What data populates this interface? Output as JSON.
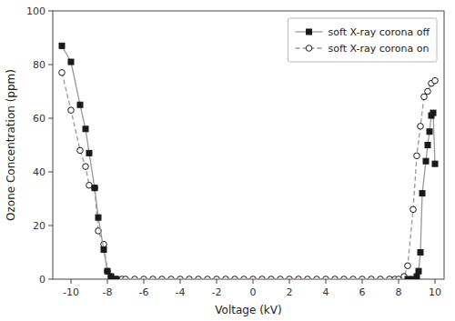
{
  "chart_data": {
    "type": "line",
    "xlabel": "Voltage (kV)",
    "ylabel": "Ozone Concentration (ppm)",
    "xlim": [
      -11,
      10.5
    ],
    "ylim": [
      0,
      100
    ],
    "xticks": [
      -10,
      -8,
      -6,
      -4,
      -2,
      0,
      2,
      4,
      6,
      8,
      10
    ],
    "yticks": [
      0,
      20,
      40,
      60,
      80,
      100
    ],
    "grid": false,
    "legend": "upper-right",
    "series": [
      {
        "name": "soft X-ray corona off",
        "color": "#999999",
        "marker": "square",
        "line_style": "solid",
        "x": [
          -10.5,
          -10.0,
          -9.5,
          -9.2,
          -9.0,
          -8.7,
          -8.5,
          -8.2,
          -8.0,
          -7.8,
          -7.5,
          8.5,
          8.8,
          9.0,
          9.1,
          9.2,
          9.3,
          9.5,
          9.6,
          9.7,
          9.8,
          9.9,
          10.0
        ],
        "values": [
          87,
          81,
          65,
          56,
          47,
          34,
          23,
          11,
          3,
          1,
          0,
          0,
          0,
          1,
          3,
          10,
          32,
          44,
          50,
          55,
          61,
          62,
          43
        ]
      },
      {
        "name": "soft X-ray corona on",
        "color": "#999999",
        "marker": "open-circle",
        "line_style": "dashed",
        "x": [
          -10.5,
          -10.0,
          -9.5,
          -9.2,
          -9.0,
          -8.7,
          -8.5,
          -8.2,
          -8.0,
          -7.8,
          -7.5,
          -7.2,
          -7.0,
          -6.5,
          -6.0,
          -5.5,
          -5.0,
          -4.5,
          -4.0,
          -3.5,
          -3.0,
          -2.5,
          -2.0,
          -1.5,
          -1.0,
          -0.5,
          0.0,
          0.5,
          1.0,
          1.5,
          2.0,
          2.5,
          3.0,
          3.5,
          4.0,
          4.5,
          5.0,
          5.5,
          6.0,
          6.5,
          7.0,
          7.5,
          7.8,
          8.0,
          8.3,
          8.5,
          8.8,
          9.0,
          9.2,
          9.4,
          9.6,
          9.8,
          10.0
        ],
        "values": [
          77,
          63,
          48,
          42,
          35,
          34,
          18,
          13,
          3,
          1,
          0,
          0,
          0,
          0,
          0,
          0,
          0,
          0,
          0,
          0,
          0,
          0,
          0,
          0,
          0,
          0,
          0,
          0,
          0,
          0,
          0,
          0,
          0,
          0,
          0,
          0,
          0,
          0,
          0,
          0,
          0,
          0,
          0,
          0,
          1,
          5,
          26,
          46,
          57,
          68,
          70,
          73,
          74
        ]
      }
    ]
  }
}
